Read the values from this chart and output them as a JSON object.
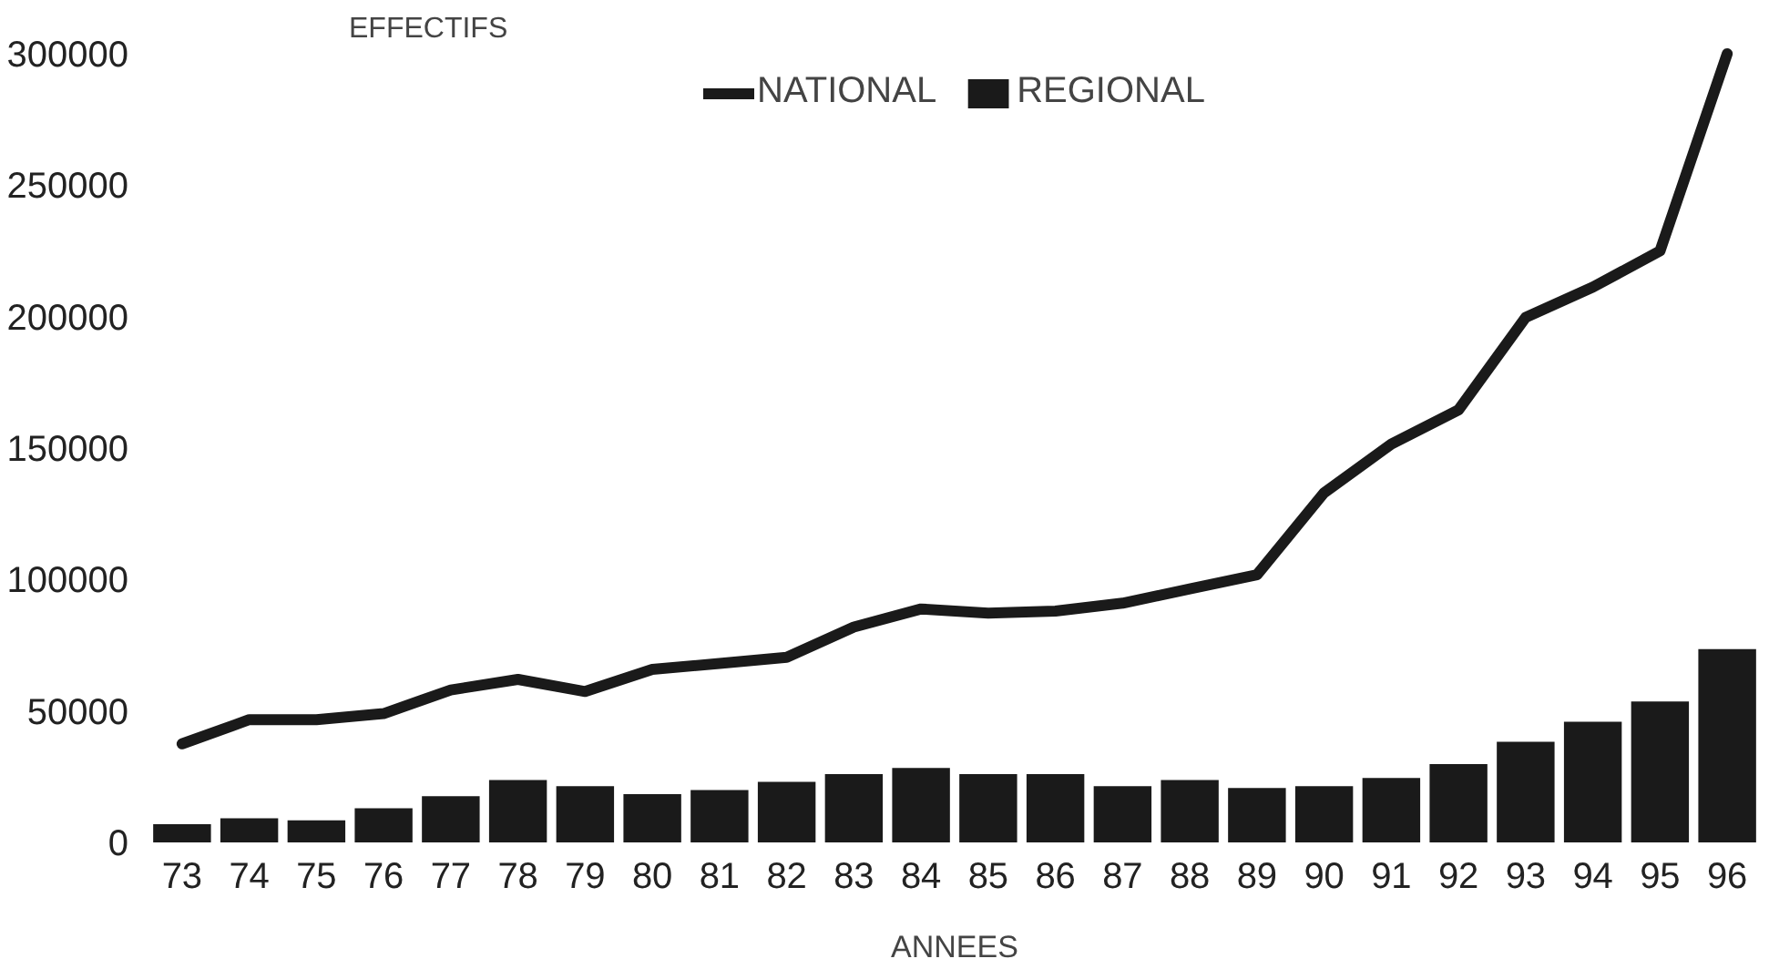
{
  "chart_data": {
    "type": "bar",
    "xlabel": "ANNEES",
    "ylabel": "EFFECTIFS",
    "categories": [
      "73",
      "74",
      "75",
      "76",
      "77",
      "78",
      "79",
      "80",
      "81",
      "82",
      "83",
      "84",
      "85",
      "86",
      "87",
      "88",
      "89",
      "90",
      "91",
      "92",
      "93",
      "94",
      "95",
      "96"
    ],
    "series": [
      {
        "name": "NATIONAL",
        "type": "line",
        "color": "#1a1a1a",
        "values": [
          37500,
          46700,
          46700,
          49000,
          58000,
          62000,
          57400,
          65800,
          68100,
          70400,
          81900,
          88800,
          87200,
          88000,
          91000,
          96400,
          101800,
          133000,
          151500,
          164500,
          199700,
          211200,
          225000,
          300000
        ]
      },
      {
        "name": "REGIONAL",
        "color": "#1a1a1a",
        "values": [
          6900,
          9200,
          8400,
          13000,
          17600,
          23700,
          21400,
          18400,
          19900,
          23000,
          26000,
          28300,
          26000,
          26000,
          21400,
          23700,
          20700,
          21400,
          24500,
          29800,
          38300,
          45900,
          53600,
          73500
        ]
      }
    ],
    "ylim": [
      0,
      300000
    ],
    "yticks": [
      0,
      50000,
      100000,
      150000,
      200000,
      250000,
      300000
    ],
    "grid": false,
    "legend": "top",
    "line_style": "solid",
    "marker": "none"
  }
}
